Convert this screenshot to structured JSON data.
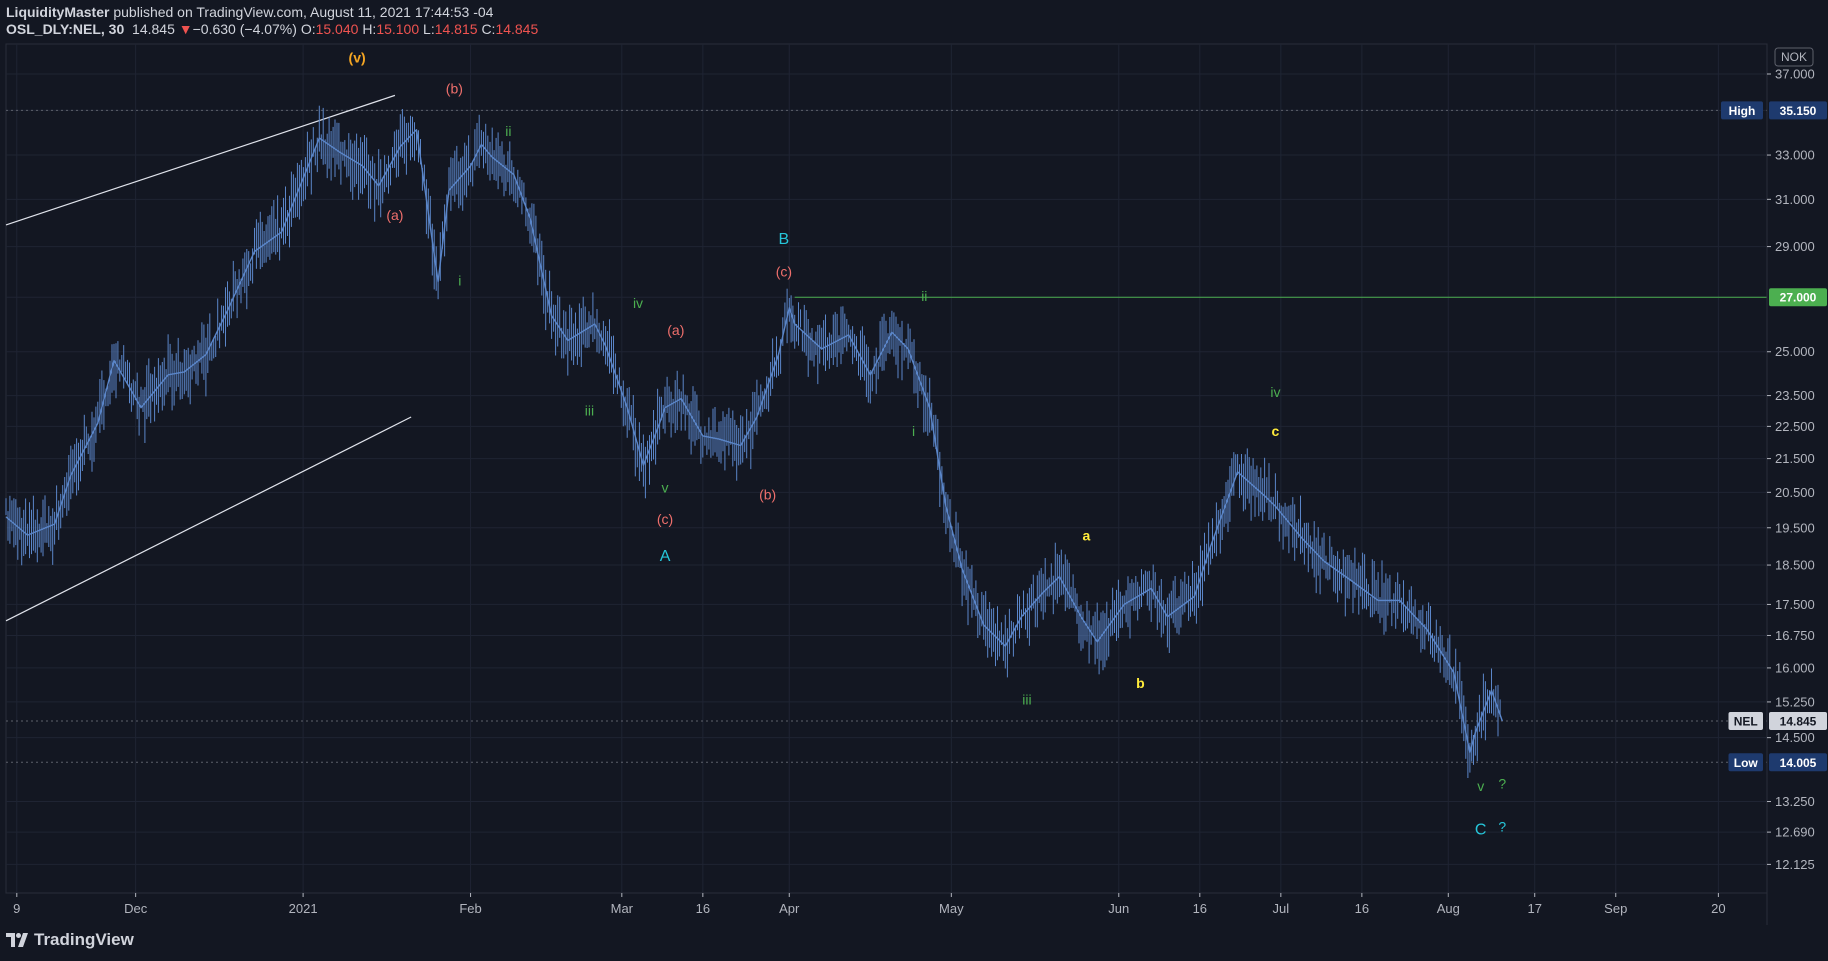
{
  "header": {
    "author": "LiquidityMaster",
    "published": "published on TradingView.com, August 11, 2021 17:44:53 -04",
    "symbol": "OSL_DLY:NEL, 30",
    "last": "14.845",
    "change_arrow": "▼",
    "change": "−0.630 (−4.07%)",
    "open_label": "O:",
    "open": "15.040",
    "high_label": "H:",
    "high": "15.100",
    "low_label": "L:",
    "low": "14.815",
    "close_label": "C:",
    "close": "14.845"
  },
  "colors": {
    "background": "#131722",
    "grid": "#1f2433",
    "candles": "#5b86c9",
    "channel": "#e0e3eb",
    "resistance_line": "#4caf50",
    "high_badge": "#1e3a6e",
    "low_badge": "#1e3a6e",
    "price_badge": "#d1d4dc",
    "resistance_badge": "#4caf50",
    "wave_orange": "#f5a623",
    "wave_salmon": "#ef6f6c",
    "wave_green": "#4caf50",
    "wave_cyan": "#26c6da",
    "wave_yellow": "#ffeb3b",
    "axis_text": "#b2b5be"
  },
  "watermark": "TradingView",
  "chart_data": {
    "type": "line",
    "currency": "NOK",
    "y_scale": "log",
    "ylim": [
      11.645,
      38.6
    ],
    "x_range": [
      "2020-11-07",
      "2021-09-29"
    ],
    "y_ticks": [
      37.0,
      35.15,
      33.0,
      31.0,
      29.0,
      27.0,
      25.0,
      23.5,
      22.5,
      21.5,
      20.5,
      19.5,
      18.5,
      17.5,
      16.75,
      16.0,
      15.25,
      14.5,
      13.25,
      12.69,
      12.125
    ],
    "y_tick_labels": [
      "37.000",
      "35.150",
      "33.000",
      "31.000",
      "29.000",
      "27.000",
      "25.000",
      "23.500",
      "22.500",
      "21.500",
      "20.500",
      "19.500",
      "18.500",
      "17.500",
      "16.750",
      "16.000",
      "15.250",
      "14.500",
      "13.250",
      "12.690",
      "12.125"
    ],
    "x_ticks": [
      {
        "date": "2020-11-09",
        "label": "9"
      },
      {
        "date": "2020-12-01",
        "label": "Dec"
      },
      {
        "date": "2021-01-01",
        "label": "2021"
      },
      {
        "date": "2021-02-01",
        "label": "Feb"
      },
      {
        "date": "2021-03-01",
        "label": "Mar"
      },
      {
        "date": "2021-03-16",
        "label": "16"
      },
      {
        "date": "2021-04-01",
        "label": "Apr"
      },
      {
        "date": "2021-05-01",
        "label": "May"
      },
      {
        "date": "2021-06-01",
        "label": "Jun"
      },
      {
        "date": "2021-06-16",
        "label": "16"
      },
      {
        "date": "2021-07-01",
        "label": "Jul"
      },
      {
        "date": "2021-07-16",
        "label": "16"
      },
      {
        "date": "2021-08-01",
        "label": "Aug"
      },
      {
        "date": "2021-08-17",
        "label": "17"
      },
      {
        "date": "2021-09-01",
        "label": "Sep"
      },
      {
        "date": "2021-09-20",
        "label": "20"
      }
    ],
    "series": [
      {
        "name": "NEL",
        "x": [
          "2020-11-07",
          "2020-11-11",
          "2020-11-16",
          "2020-11-19",
          "2020-11-24",
          "2020-11-27",
          "2020-12-02",
          "2020-12-07",
          "2020-12-10",
          "2020-12-14",
          "2020-12-18",
          "2020-12-23",
          "2020-12-28",
          "2021-01-04",
          "2021-01-08",
          "2021-01-12",
          "2021-01-15",
          "2021-01-19",
          "2021-01-22",
          "2021-01-26",
          "2021-01-28",
          "2021-02-01",
          "2021-02-03",
          "2021-02-05",
          "2021-02-09",
          "2021-02-12",
          "2021-02-16",
          "2021-02-19",
          "2021-02-24",
          "2021-02-26",
          "2021-03-02",
          "2021-03-05",
          "2021-03-08",
          "2021-03-09",
          "2021-03-12",
          "2021-03-16",
          "2021-03-19",
          "2021-03-23",
          "2021-03-26",
          "2021-03-30",
          "2021-04-01",
          "2021-04-02",
          "2021-04-07",
          "2021-04-12",
          "2021-04-16",
          "2021-04-20",
          "2021-04-23",
          "2021-04-27",
          "2021-04-30",
          "2021-05-03",
          "2021-05-07",
          "2021-05-11",
          "2021-05-14",
          "2021-05-18",
          "2021-05-21",
          "2021-05-25",
          "2021-05-28",
          "2021-06-02",
          "2021-06-07",
          "2021-06-10",
          "2021-06-15",
          "2021-06-18",
          "2021-06-23",
          "2021-06-28",
          "2021-06-30",
          "2021-07-05",
          "2021-07-09",
          "2021-07-14",
          "2021-07-19",
          "2021-07-23",
          "2021-07-28",
          "2021-08-02",
          "2021-08-05",
          "2021-08-06",
          "2021-08-09",
          "2021-08-11"
        ],
        "y": [
          19.8,
          19.3,
          19.6,
          21.0,
          22.6,
          24.7,
          23.1,
          24.2,
          24.3,
          24.9,
          26.5,
          28.8,
          29.6,
          33.8,
          33.1,
          32.5,
          31.6,
          33.4,
          34.2,
          27.6,
          31.4,
          32.5,
          33.5,
          32.9,
          32.1,
          30.2,
          26.3,
          25.4,
          26.0,
          25.2,
          23.1,
          21.3,
          22.6,
          23.1,
          23.4,
          22.2,
          22.1,
          21.9,
          22.8,
          24.9,
          26.6,
          26.0,
          25.1,
          25.6,
          24.2,
          25.7,
          25.1,
          23.1,
          20.1,
          18.4,
          17.0,
          16.5,
          17.2,
          17.8,
          18.2,
          17.2,
          16.6,
          17.5,
          17.9,
          17.2,
          17.7,
          19.0,
          21.1,
          20.4,
          20.1,
          19.2,
          18.6,
          18.1,
          17.6,
          17.6,
          16.9,
          15.9,
          14.2,
          14.6,
          15.5,
          14.845
        ]
      }
    ],
    "price_levels": [
      {
        "name": "High",
        "label": "High",
        "value": 35.15,
        "value_label": "35.150"
      },
      {
        "name": "resistance",
        "value": 27.0,
        "value_label": "27.000"
      },
      {
        "name": "current",
        "label": "NEL",
        "value": 14.845,
        "value_label": "14.845"
      },
      {
        "name": "Low",
        "label": "Low",
        "value": 14.005,
        "value_label": "14.005"
      }
    ],
    "channel_lines": [
      {
        "x": [
          "2020-11-07",
          "2021-01-18"
        ],
        "y": [
          29.9,
          35.9
        ]
      },
      {
        "x": [
          "2020-11-07",
          "2021-01-21"
        ],
        "y": [
          17.1,
          22.8
        ]
      }
    ],
    "annotations": [
      {
        "text": "(v)",
        "x": "2021-01-11",
        "y": 37.6,
        "color": "wave_orange"
      },
      {
        "text": "(b)",
        "x": "2021-01-29",
        "y": 36.0,
        "color": "wave_salmon"
      },
      {
        "text": "(a)",
        "x": "2021-01-18",
        "y": 30.1,
        "color": "wave_salmon"
      },
      {
        "text": "ii",
        "x": "2021-02-08",
        "y": 33.9,
        "color": "wave_green"
      },
      {
        "text": "i",
        "x": "2021-01-30",
        "y": 27.45,
        "color": "wave_green"
      },
      {
        "text": "B",
        "x": "2021-03-31",
        "y": 29.1,
        "color": "wave_cyan"
      },
      {
        "text": "(c)",
        "x": "2021-03-31",
        "y": 27.8,
        "color": "wave_salmon"
      },
      {
        "text": "iv",
        "x": "2021-03-04",
        "y": 26.6,
        "color": "wave_green"
      },
      {
        "text": "(a)",
        "x": "2021-03-11",
        "y": 25.6,
        "color": "wave_salmon"
      },
      {
        "text": "ii",
        "x": "2021-04-26",
        "y": 26.85,
        "color": "wave_green"
      },
      {
        "text": "iii",
        "x": "2021-02-23",
        "y": 22.85,
        "color": "wave_green"
      },
      {
        "text": "i",
        "x": "2021-04-24",
        "y": 22.2,
        "color": "wave_green"
      },
      {
        "text": "v",
        "x": "2021-03-09",
        "y": 20.5,
        "color": "wave_green"
      },
      {
        "text": "(b)",
        "x": "2021-03-28",
        "y": 20.3,
        "color": "wave_salmon"
      },
      {
        "text": "(c)",
        "x": "2021-03-09",
        "y": 19.6,
        "color": "wave_salmon"
      },
      {
        "text": "A",
        "x": "2021-03-09",
        "y": 18.6,
        "color": "wave_cyan"
      },
      {
        "text": "iv",
        "x": "2021-06-30",
        "y": 23.45,
        "color": "wave_green"
      },
      {
        "text": "c",
        "x": "2021-06-30",
        "y": 22.2,
        "color": "wave_yellow"
      },
      {
        "text": "a",
        "x": "2021-05-26",
        "y": 19.15,
        "color": "wave_yellow"
      },
      {
        "text": "iii",
        "x": "2021-05-15",
        "y": 15.2,
        "color": "wave_green"
      },
      {
        "text": "b",
        "x": "2021-06-05",
        "y": 15.55,
        "color": "wave_yellow"
      },
      {
        "text": "v",
        "x": "2021-08-07",
        "y": 13.45,
        "color": "wave_green"
      },
      {
        "text": "?",
        "x": "2021-08-11",
        "y": 13.5,
        "color": "wave_green"
      },
      {
        "text": "C",
        "x": "2021-08-07",
        "y": 12.65,
        "color": "wave_cyan"
      },
      {
        "text": "?",
        "x": "2021-08-11",
        "y": 12.7,
        "color": "wave_cyan"
      }
    ]
  }
}
